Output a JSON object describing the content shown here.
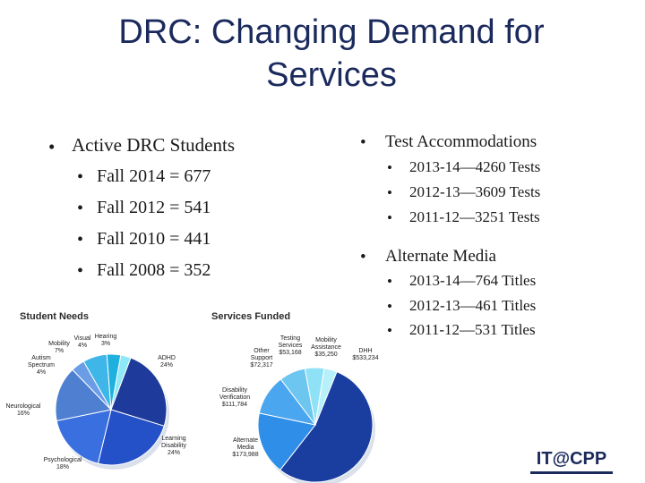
{
  "title": "DRC: Changing Demand for Services",
  "left_list": {
    "heading": "Active DRC Students",
    "items": [
      "Fall 2014 = 677",
      "Fall 2012 = 541",
      "Fall 2010 = 441",
      "Fall 2008 = 352"
    ]
  },
  "right_list": {
    "sections": [
      {
        "heading": "Test Accommodations",
        "items": [
          "2013-14—4260 Tests",
          "2012-13—3609 Tests",
          "2011-12—3251 Tests"
        ]
      },
      {
        "heading": "Alternate Media",
        "items": [
          "2013-14—764 Titles",
          "2012-13—461 Titles",
          "2011-12—531 Titles"
        ]
      }
    ]
  },
  "chart_data": [
    {
      "type": "pie",
      "title": "Student Needs",
      "labels": [
        "Hearing",
        "ADHD",
        "Learning Disability",
        "Psychological",
        "Neurological",
        "Autism Spectrum",
        "Mobility",
        "Visual"
      ],
      "label_text": [
        "Hearing 3%",
        "ADHD 24%",
        "Learning Disability 24%",
        "Psychological 18%",
        "Neurological 16%",
        "Autism Spectrum 4%",
        "Mobility 7%",
        "Visual 4%"
      ],
      "values": [
        3,
        24,
        24,
        18,
        16,
        4,
        7,
        4
      ],
      "colors": [
        "#8fe8f5",
        "#1e3a9a",
        "#2450c8",
        "#3a6fe0",
        "#4f7fd0",
        "#6b9ce6",
        "#3fb6e8",
        "#1fb0e0"
      ]
    },
    {
      "type": "pie",
      "title": "Services Funded",
      "labels": [
        "DHH",
        "Alternate Media",
        "Disability Verification",
        "Other Support",
        "Testing Services",
        "Mobility Assistance"
      ],
      "label_text": [
        "DHH $533,234",
        "Alternate Media $173,988",
        "Disability Verification $111,784",
        "Other Support $72,317",
        "Testing Services $53,168",
        "Mobility Assistance $35,250"
      ],
      "values": [
        533234,
        173988,
        111784,
        72317,
        53168,
        35250
      ],
      "colors": [
        "#1a3ea0",
        "#2f8fe8",
        "#4aa6ee",
        "#6cc6f0",
        "#8fe2f5",
        "#b6f0fa"
      ]
    }
  ],
  "logo": {
    "text": "IT@CPP"
  }
}
